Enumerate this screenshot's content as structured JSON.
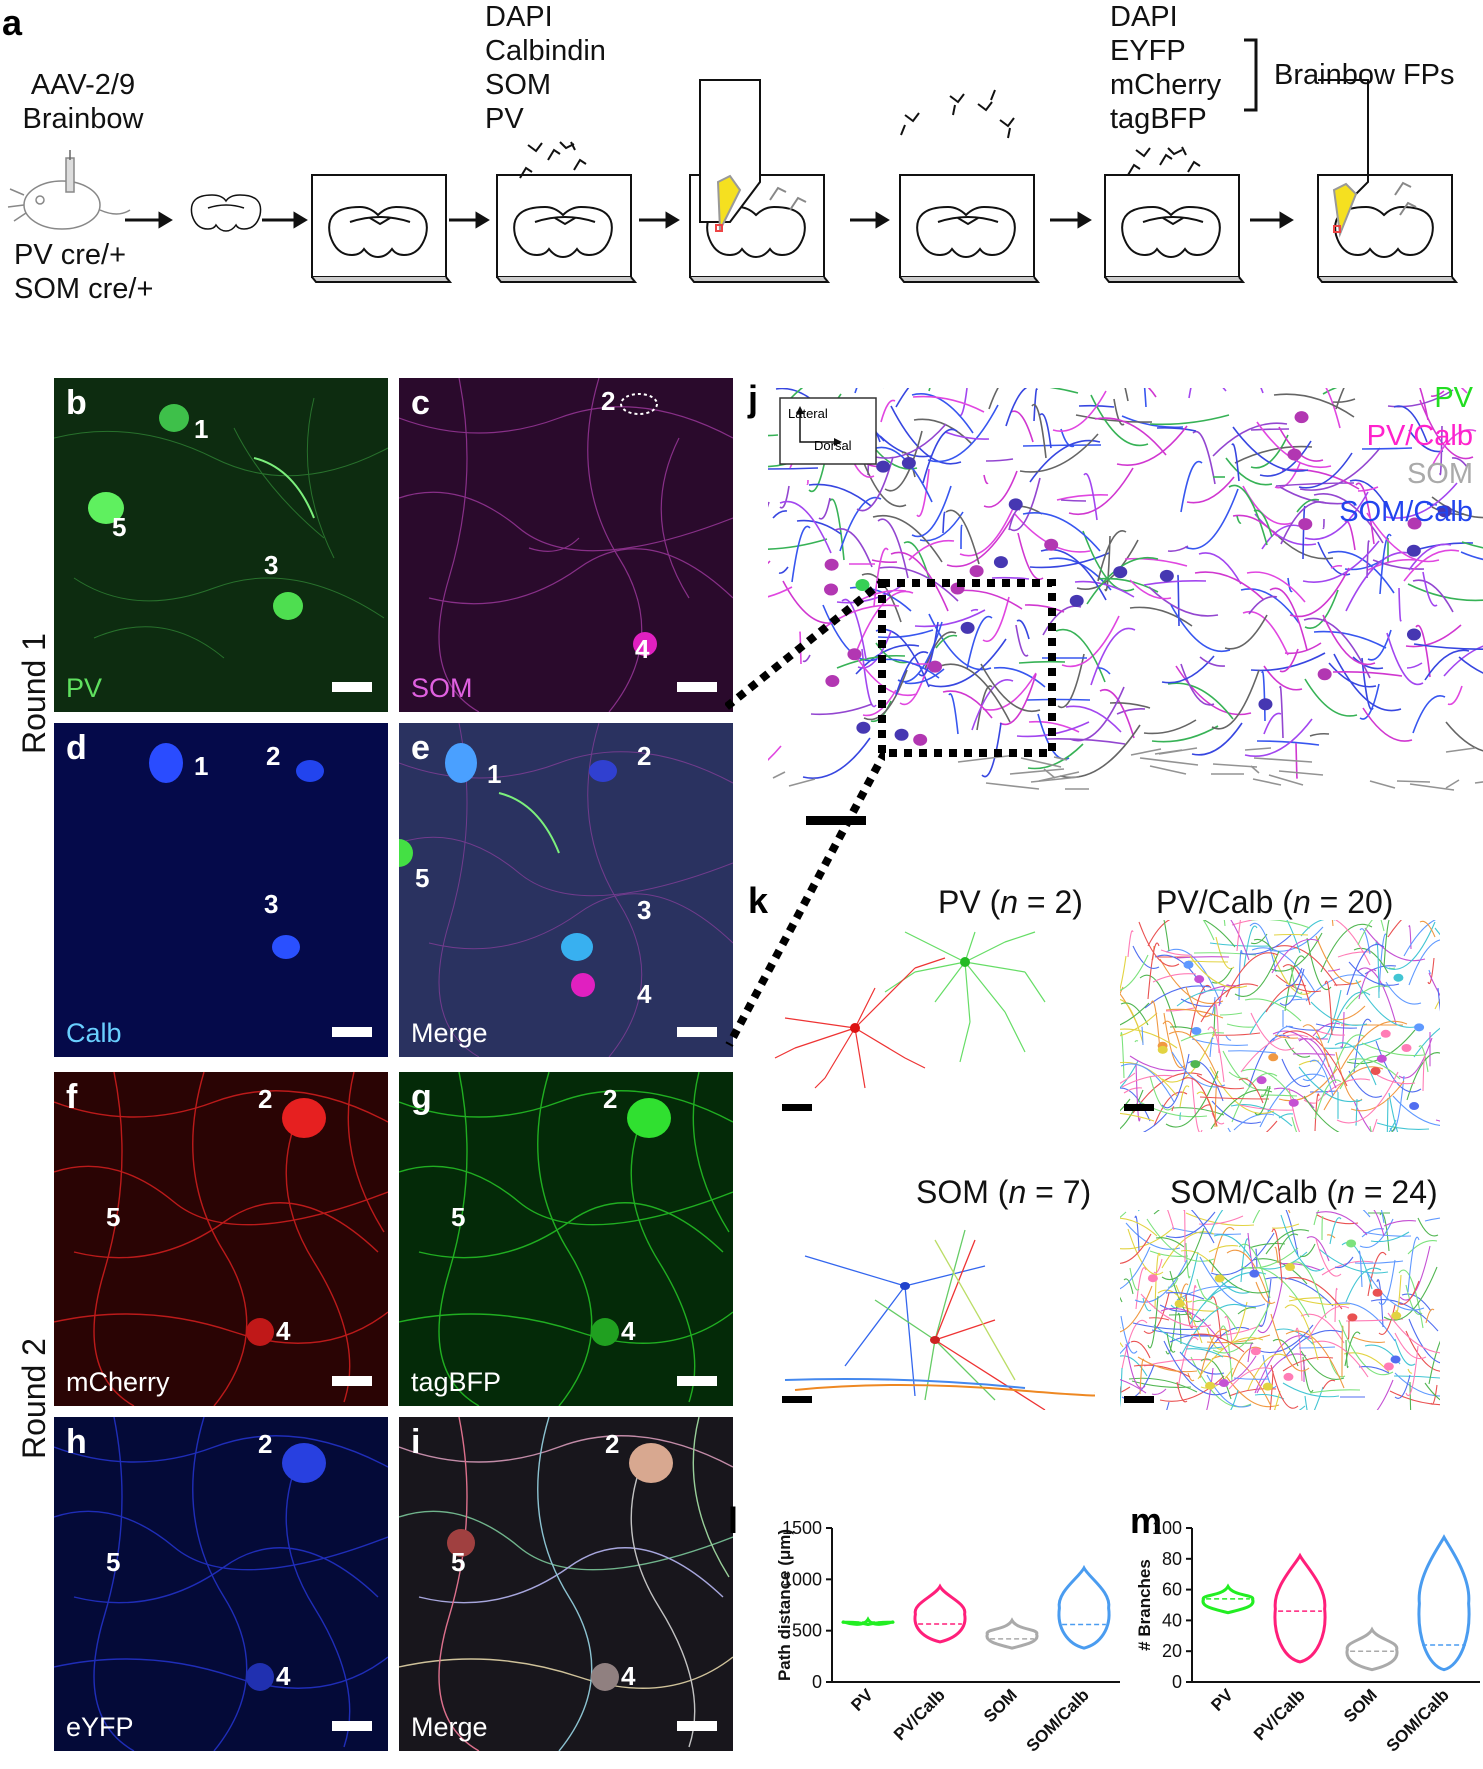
{
  "panel_a": {
    "label": "a",
    "virus": [
      "AAV-2/9",
      "Brainbow"
    ],
    "mouse": [
      "PV cre/+",
      "SOM cre/+"
    ],
    "round1_stains": [
      "DAPI",
      "Calbindin",
      "SOM",
      "PV"
    ],
    "round2_stains": [
      "DAPI",
      "EYFP",
      "mCherry",
      "tagBFP"
    ],
    "brainbow_label": "Brainbow FPs"
  },
  "rounds": {
    "round1": "Round 1",
    "round2": "Round 2"
  },
  "micro_panels": [
    {
      "id": "b",
      "label": "b",
      "channel": "PV",
      "channel_color": "#5fe05f",
      "bg": "#0d2c10",
      "cells": [
        {
          "n": "1"
        },
        {
          "n": "5"
        },
        {
          "n": "3"
        }
      ]
    },
    {
      "id": "c",
      "label": "c",
      "channel": "SOM",
      "channel_color": "#e060e0",
      "bg": "#2a0a2c",
      "cells": [
        {
          "n": "2"
        },
        {
          "n": "4"
        }
      ]
    },
    {
      "id": "d",
      "label": "d",
      "channel": "Calb",
      "channel_color": "#6ad0ff",
      "bg": "#050a4a",
      "cells": [
        {
          "n": "1"
        },
        {
          "n": "2"
        },
        {
          "n": "3"
        }
      ]
    },
    {
      "id": "e",
      "label": "e",
      "channel": "Merge",
      "channel_color": "#ffffff",
      "bg": "#2a3260",
      "cells": [
        {
          "n": "1"
        },
        {
          "n": "2"
        },
        {
          "n": "5"
        },
        {
          "n": "3"
        },
        {
          "n": "4"
        }
      ]
    },
    {
      "id": "f",
      "label": "f",
      "channel": "mCherry",
      "channel_color": "#ffffff",
      "bg": "#2a0404",
      "cells": [
        {
          "n": "2"
        },
        {
          "n": "5"
        },
        {
          "n": "4"
        }
      ]
    },
    {
      "id": "g",
      "label": "g",
      "channel": "tagBFP",
      "channel_color": "#ffffff",
      "bg": "#042a08",
      "cells": [
        {
          "n": "2"
        },
        {
          "n": "5"
        },
        {
          "n": "4"
        }
      ]
    },
    {
      "id": "h",
      "label": "h",
      "channel": "eYFP",
      "channel_color": "#ffffff",
      "bg": "#040a38",
      "cells": [
        {
          "n": "2"
        },
        {
          "n": "5"
        },
        {
          "n": "4"
        }
      ]
    },
    {
      "id": "i",
      "label": "i",
      "channel": "Merge",
      "channel_color": "#ffffff",
      "bg": "#18161c",
      "cells": [
        {
          "n": "2"
        },
        {
          "n": "5"
        },
        {
          "n": "4"
        }
      ]
    }
  ],
  "panel_j": {
    "label": "j",
    "axis_labels": [
      "Lateral",
      "Dorsal"
    ],
    "legend": [
      {
        "label": "PV",
        "color": "#22dd22"
      },
      {
        "label": "PV/Calb",
        "color": "#ff22cc"
      },
      {
        "label": "SOM",
        "color": "#aaaaaa"
      },
      {
        "label": "SOM/Calb",
        "color": "#2244ee"
      }
    ]
  },
  "panel_k": {
    "label": "k",
    "groups": [
      {
        "name": "PV",
        "n": "2"
      },
      {
        "name": "PV/Calb",
        "n": "20"
      },
      {
        "name": "SOM",
        "n": "7"
      },
      {
        "name": "SOM/Calb",
        "n": "24"
      }
    ]
  },
  "chart_data": [
    {
      "panel": "l",
      "type": "violin",
      "ylabel": "Path distance (μm)",
      "ylim": [
        0,
        1500
      ],
      "yticks": [
        0,
        500,
        1000,
        1500
      ],
      "categories": [
        "PV",
        "PV/Calb",
        "SOM",
        "SOM/Calb"
      ],
      "colors": [
        "#22ee22",
        "#ff1f7a",
        "#aaaaaa",
        "#4a9cf0"
      ],
      "series": [
        {
          "name": "PV",
          "min": 560,
          "max": 610,
          "median": 585
        },
        {
          "name": "PV/Calb",
          "min": 390,
          "max": 930,
          "median": 565
        },
        {
          "name": "SOM",
          "min": 330,
          "max": 600,
          "median": 420
        },
        {
          "name": "SOM/Calb",
          "min": 330,
          "max": 1110,
          "median": 560
        }
      ]
    },
    {
      "panel": "m",
      "type": "violin",
      "ylabel": "# Branches",
      "ylim": [
        0,
        100
      ],
      "yticks": [
        0,
        20,
        40,
        60,
        80,
        100
      ],
      "categories": [
        "PV",
        "PV/Calb",
        "SOM",
        "SOM/Calb"
      ],
      "colors": [
        "#22ee22",
        "#ff1f7a",
        "#aaaaaa",
        "#4a9cf0"
      ],
      "series": [
        {
          "name": "PV",
          "min": 45,
          "max": 62,
          "median": 54
        },
        {
          "name": "PV/Calb",
          "min": 13,
          "max": 82,
          "median": 46
        },
        {
          "name": "SOM",
          "min": 8,
          "max": 34,
          "median": 20
        },
        {
          "name": "SOM/Calb",
          "min": 8,
          "max": 94,
          "median": 24
        }
      ]
    }
  ]
}
